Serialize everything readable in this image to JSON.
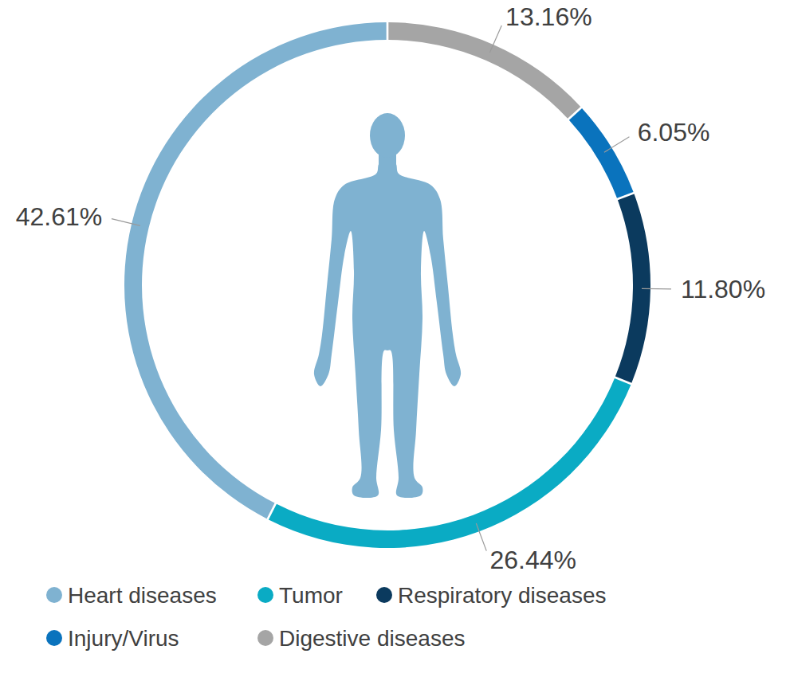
{
  "chart_data": {
    "type": "donut",
    "categories": [
      "Heart diseases",
      "Tumor",
      "Respiratory diseases",
      "Injury/Virus",
      "Digestive diseases"
    ],
    "values": [
      42.61,
      26.44,
      11.8,
      6.05,
      13.16
    ],
    "value_labels": [
      "42.61%",
      "26.44%",
      "11.80%",
      "6.05%",
      "13.16%"
    ],
    "colors": [
      "#7fb2d1",
      "#0aabc4",
      "#0b3a5e",
      "#0a73bd",
      "#a5a5a5"
    ],
    "data_labels": true,
    "legend": "bottom"
  }
}
